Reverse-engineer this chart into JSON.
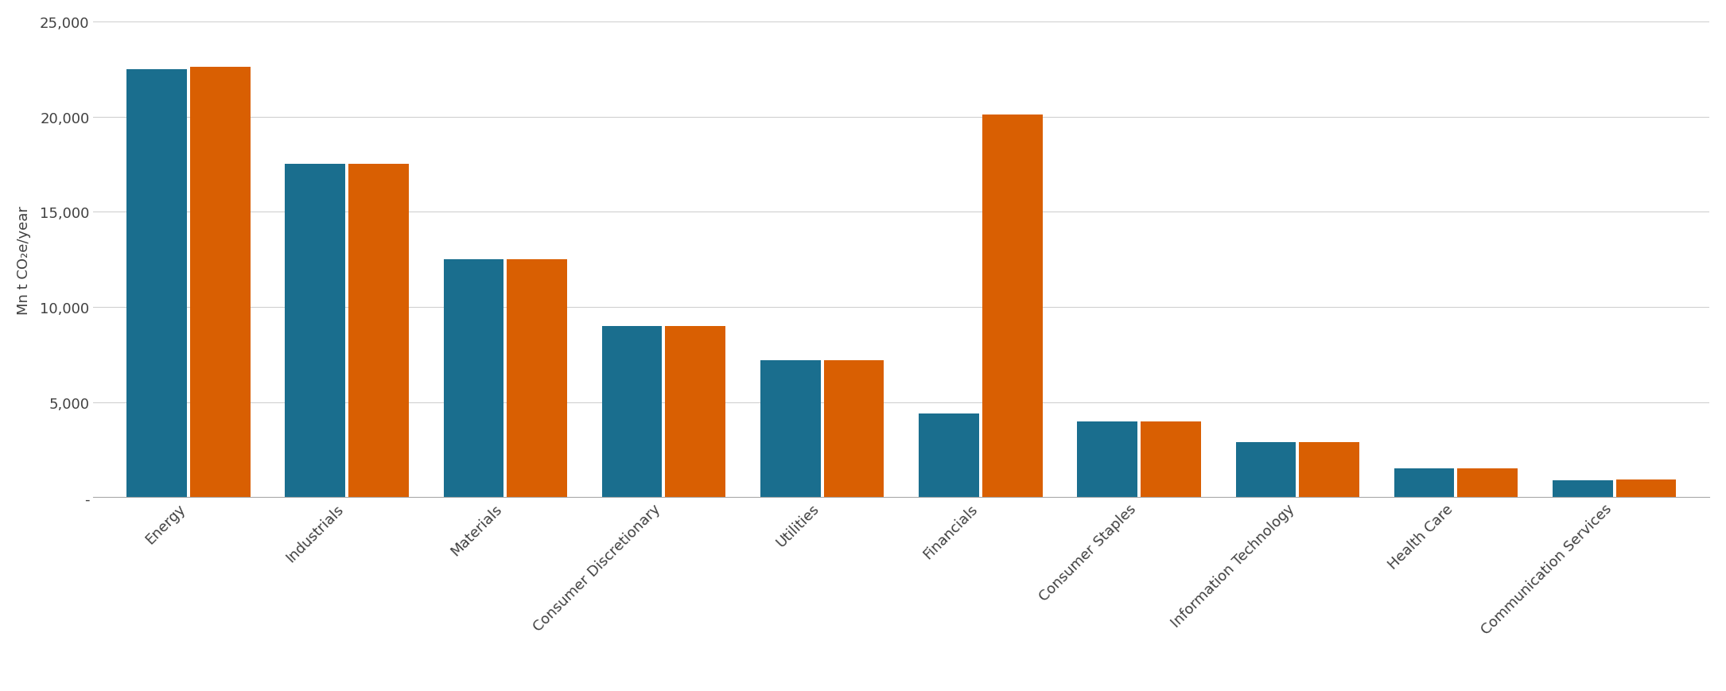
{
  "categories": [
    "Energy",
    "Industrials",
    "Materials",
    "Consumer Discretionary",
    "Utilities",
    "Financials",
    "Consumer Staples",
    "Information Technology",
    "Health Care",
    "Communication Services"
  ],
  "scope_excl": [
    22500,
    17500,
    12500,
    9000,
    7200,
    4400,
    4000,
    2900,
    1500,
    900
  ],
  "scope_incl": [
    22600,
    17500,
    12500,
    9000,
    7200,
    20100,
    4000,
    2900,
    1500,
    950
  ],
  "color_excl": "#1a6e8e",
  "color_incl": "#d95f02",
  "ylabel": "Mn t CO₂e/year",
  "ylim": [
    0,
    25000
  ],
  "yticks": [
    0,
    5000,
    10000,
    15000,
    20000,
    25000
  ],
  "ytick_labels": [
    "-",
    "5,000",
    "10,000",
    "15,000",
    "20,000",
    "25,000"
  ],
  "background_color": "#ffffff",
  "bar_width": 0.38,
  "axis_fontsize": 13,
  "tick_fontsize": 13,
  "legend_fontsize": 13,
  "ylabel_fontsize": 13
}
